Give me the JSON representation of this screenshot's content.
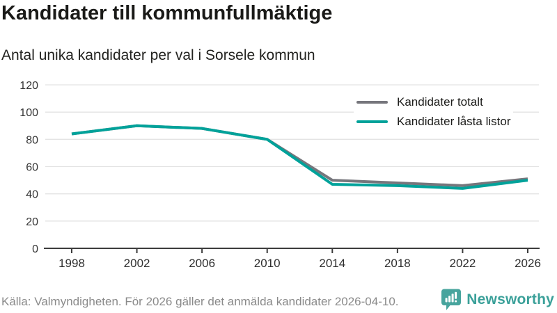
{
  "header": {
    "title": "Kandidater till kommunfullmäktige",
    "subtitle": "Antal unika kandidater per val i Sorsele kommun"
  },
  "chart_data": {
    "type": "line",
    "title": "Kandidater till kommunfullmäktige",
    "subtitle": "Antal unika kandidater per val i Sorsele kommun",
    "x": [
      1998,
      2002,
      2006,
      2010,
      2014,
      2018,
      2022,
      2026
    ],
    "series": [
      {
        "name": "Kandidater totalt",
        "color": "#76767c",
        "values": [
          84,
          90,
          88,
          80,
          50,
          48,
          46,
          51
        ]
      },
      {
        "name": "Kandidater låsta listor",
        "color": "#00a29a",
        "values": [
          84,
          90,
          88,
          80,
          47,
          46,
          44,
          50
        ]
      }
    ],
    "xlabel": "",
    "ylabel": "",
    "ylim": [
      0,
      120
    ],
    "yticks": [
      0,
      20,
      40,
      60,
      80,
      100,
      120
    ],
    "grid": "horizontal",
    "legend_position": "top-right"
  },
  "footer": {
    "source": "Källa: Valmyndigheten. För 2026 gäller det anmälda kandidater 2026-04-10.",
    "brand": "Newsworthy",
    "brand_color": "#3aa099",
    "icon": "newsworthy-speech-bubble-bar-chart"
  }
}
